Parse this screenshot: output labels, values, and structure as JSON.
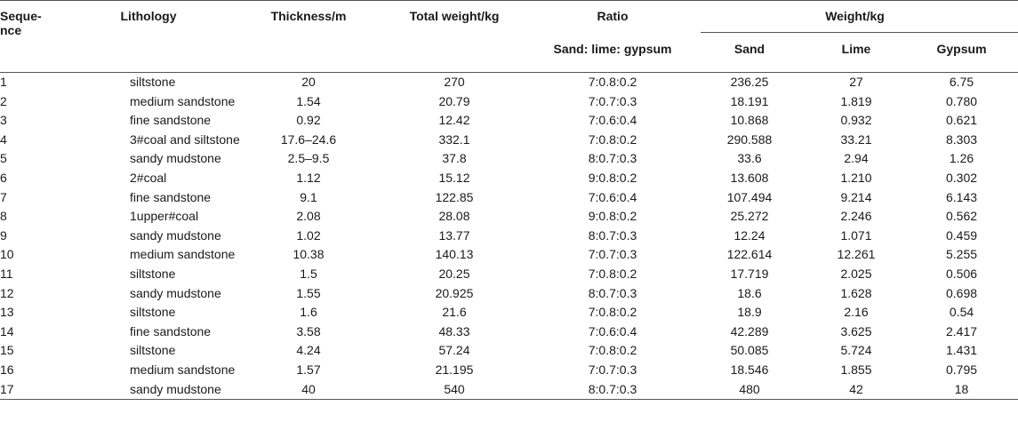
{
  "headers": {
    "sequence": "Seque-nce",
    "lithology": "Lithology",
    "thickness": "Thickness/m",
    "total_weight": "Total weight/kg",
    "ratio": "Ratio",
    "ratio_sub": "Sand: lime: gypsum",
    "weight_group": "Weight/kg",
    "sand": "Sand",
    "lime": "Lime",
    "gypsum": "Gypsum"
  },
  "rows": [
    {
      "seq": "1",
      "lithology": "siltstone",
      "thickness": "20",
      "total": "270",
      "ratio": "7:0.8:0.2",
      "sand": "236.25",
      "lime": "27",
      "gypsum": "6.75"
    },
    {
      "seq": "2",
      "lithology": "medium sandstone",
      "thickness": "1.54",
      "total": "20.79",
      "ratio": "7:0.7:0.3",
      "sand": "18.191",
      "lime": "1.819",
      "gypsum": "0.780"
    },
    {
      "seq": "3",
      "lithology": "fine sandstone",
      "thickness": "0.92",
      "total": "12.42",
      "ratio": "7:0.6:0.4",
      "sand": "10.868",
      "lime": "0.932",
      "gypsum": "0.621"
    },
    {
      "seq": "4",
      "lithology": "3#coal and siltstone",
      "thickness": "17.6–24.6",
      "total": "332.1",
      "ratio": "7:0.8:0.2",
      "sand": "290.588",
      "lime": "33.21",
      "gypsum": "8.303"
    },
    {
      "seq": "5",
      "lithology": "sandy mudstone",
      "thickness": "2.5–9.5",
      "total": "37.8",
      "ratio": "8:0.7:0.3",
      "sand": "33.6",
      "lime": "2.94",
      "gypsum": "1.26"
    },
    {
      "seq": "6",
      "lithology": "2#coal",
      "thickness": "1.12",
      "total": "15.12",
      "ratio": "9:0.8:0.2",
      "sand": "13.608",
      "lime": "1.210",
      "gypsum": "0.302"
    },
    {
      "seq": "7",
      "lithology": "fine sandstone",
      "thickness": "9.1",
      "total": "122.85",
      "ratio": "7:0.6:0.4",
      "sand": "107.494",
      "lime": "9.214",
      "gypsum": "6.143"
    },
    {
      "seq": "8",
      "lithology": "1upper#coal",
      "thickness": "2.08",
      "total": "28.08",
      "ratio": "9:0.8:0.2",
      "sand": "25.272",
      "lime": "2.246",
      "gypsum": "0.562"
    },
    {
      "seq": "9",
      "lithology": "sandy mudstone",
      "thickness": "1.02",
      "total": "13.77",
      "ratio": "8:0.7:0.3",
      "sand": "12.24",
      "lime": "1.071",
      "gypsum": "0.459"
    },
    {
      "seq": "10",
      "lithology": "medium sandstone",
      "thickness": "10.38",
      "total": "140.13",
      "ratio": "7:0.7:0.3",
      "sand": "122.614",
      "lime": "12.261",
      "gypsum": "5.255"
    },
    {
      "seq": "11",
      "lithology": "siltstone",
      "thickness": "1.5",
      "total": "20.25",
      "ratio": "7:0.8:0.2",
      "sand": "17.719",
      "lime": "2.025",
      "gypsum": "0.506"
    },
    {
      "seq": "12",
      "lithology": "sandy mudstone",
      "thickness": "1.55",
      "total": "20.925",
      "ratio": "8:0.7:0.3",
      "sand": "18.6",
      "lime": "1.628",
      "gypsum": "0.698"
    },
    {
      "seq": "13",
      "lithology": "siltstone",
      "thickness": "1.6",
      "total": "21.6",
      "ratio": "7:0.8:0.2",
      "sand": "18.9",
      "lime": "2.16",
      "gypsum": "0.54"
    },
    {
      "seq": "14",
      "lithology": "fine sandstone",
      "thickness": "3.58",
      "total": "48.33",
      "ratio": "7:0.6:0.4",
      "sand": "42.289",
      "lime": "3.625",
      "gypsum": "2.417"
    },
    {
      "seq": "15",
      "lithology": "siltstone",
      "thickness": "4.24",
      "total": "57.24",
      "ratio": "7:0.8:0.2",
      "sand": "50.085",
      "lime": "5.724",
      "gypsum": "1.431"
    },
    {
      "seq": "16",
      "lithology": "medium sandstone",
      "thickness": "1.57",
      "total": "21.195",
      "ratio": "7:0.7:0.3",
      "sand": "18.546",
      "lime": "1.855",
      "gypsum": "0.795"
    },
    {
      "seq": "17",
      "lithology": "sandy mudstone",
      "thickness": "40",
      "total": "540",
      "ratio": "8:0.7:0.3",
      "sand": "480",
      "lime": "42",
      "gypsum": "18"
    }
  ]
}
